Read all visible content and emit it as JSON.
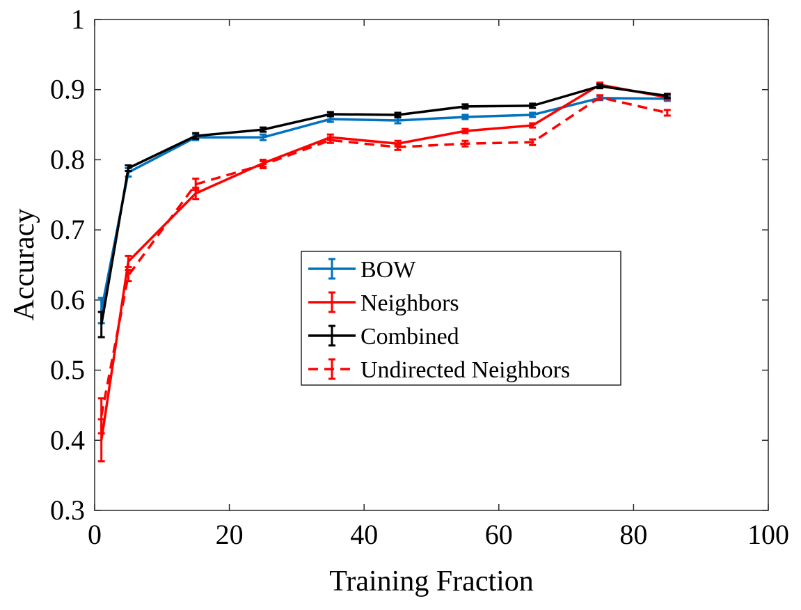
{
  "chart_data": {
    "type": "line",
    "xlabel": "Training Fraction",
    "ylabel": "Accuracy",
    "xlim": [
      0,
      100
    ],
    "ylim": [
      0.3,
      1
    ],
    "xticks": [
      0,
      20,
      40,
      60,
      80,
      100
    ],
    "yticks": [
      0.3,
      0.4,
      0.5,
      0.6,
      0.7,
      0.8,
      0.9,
      1
    ],
    "xtick_labels": [
      "0",
      "20",
      "40",
      "60",
      "80",
      "100"
    ],
    "ytick_labels": [
      "0.3",
      "0.4",
      "0.5",
      "0.6",
      "0.7",
      "0.8",
      "0.9",
      "1"
    ],
    "grid": false,
    "legend_position": "center",
    "x": [
      1,
      5,
      15,
      25,
      35,
      45,
      55,
      65,
      75,
      85
    ],
    "series": [
      {
        "name": "BOW",
        "color": "#0072BD",
        "dashed": false,
        "values": [
          0.585,
          0.782,
          0.832,
          0.832,
          0.858,
          0.856,
          0.861,
          0.864,
          0.888,
          0.887
        ],
        "errors": [
          0.018,
          0.006,
          0.004,
          0.004,
          0.004,
          0.004,
          0.003,
          0.003,
          0.003,
          0.003
        ]
      },
      {
        "name": "Neighbors",
        "color": "#FF0000",
        "dashed": false,
        "values": [
          0.4,
          0.655,
          0.752,
          0.795,
          0.832,
          0.823,
          0.841,
          0.849,
          0.907,
          0.889
        ],
        "errors": [
          0.03,
          0.008,
          0.008,
          0.005,
          0.004,
          0.004,
          0.003,
          0.003,
          0.003,
          0.003
        ]
      },
      {
        "name": "Combined",
        "color": "#000000",
        "dashed": false,
        "values": [
          0.565,
          0.788,
          0.834,
          0.843,
          0.865,
          0.864,
          0.876,
          0.877,
          0.905,
          0.891
        ],
        "errors": [
          0.018,
          0.004,
          0.004,
          0.003,
          0.003,
          0.003,
          0.003,
          0.003,
          0.003,
          0.003
        ]
      },
      {
        "name": "Undirected Neighbors",
        "color": "#FF0000",
        "dashed": true,
        "values": [
          0.435,
          0.635,
          0.765,
          0.793,
          0.828,
          0.818,
          0.823,
          0.825,
          0.889,
          0.867
        ],
        "errors": [
          0.025,
          0.008,
          0.008,
          0.005,
          0.004,
          0.004,
          0.004,
          0.004,
          0.003,
          0.004
        ]
      }
    ]
  }
}
